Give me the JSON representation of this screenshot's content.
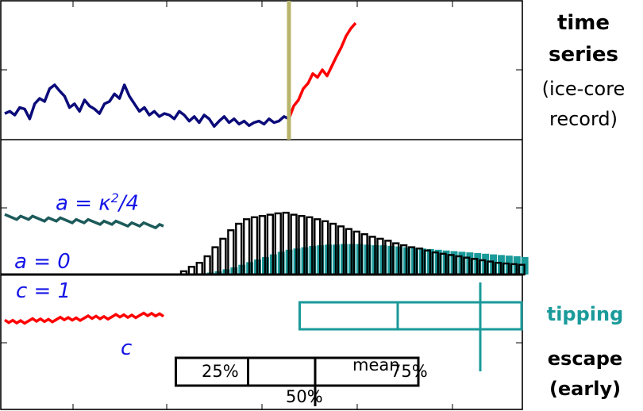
{
  "labels": {
    "time_series": "time",
    "time_series_2": "series",
    "ice_core_1": "(ice-core",
    "ice_core_2": "record)",
    "tipping": "tipping",
    "escape": "escape",
    "early": "(early)",
    "a_kappa_lhs": "a = κ",
    "a_kappa_exp": "2",
    "a_kappa_rhs": "/4",
    "a_zero": "a = 0",
    "c_one": "c = 1",
    "c_var": "c",
    "mean": "mean",
    "p25": "25%",
    "p50": "50%",
    "p75": "75%"
  },
  "colors": {
    "navy": "#0b0b7a",
    "red": "#ff0000",
    "tip_line": "#b8b46a",
    "teal": "#1a9a9a",
    "dark_teal": "#1d5a5a",
    "blue_text": "#1515e6",
    "black": "#000000"
  },
  "chart_data": [
    {
      "type": "line",
      "title": "",
      "xlabel": "",
      "ylabel": "",
      "series": [
        {
          "color": "#0b0b7a",
          "values": [
            0.22,
            0.25,
            0.2,
            0.3,
            0.28,
            0.15,
            0.35,
            0.42,
            0.38,
            0.55,
            0.6,
            0.52,
            0.45,
            0.3,
            0.35,
            0.25,
            0.4,
            0.32,
            0.28,
            0.22,
            0.35,
            0.38,
            0.48,
            0.42,
            0.6,
            0.45,
            0.35,
            0.25,
            0.3,
            0.2,
            0.25,
            0.18,
            0.22,
            0.2,
            0.15,
            0.25,
            0.2,
            0.12,
            0.18,
            0.1,
            0.2,
            0.15,
            0.05,
            0.12,
            0.18,
            0.1,
            0.15,
            0.08,
            0.12,
            0.06,
            0.1,
            0.12,
            0.08,
            0.15,
            0.1,
            0.12,
            0.18,
            0.15
          ]
        },
        {
          "color": "#ff0000",
          "values": [
            0.15,
            0.32,
            0.4,
            0.55,
            0.62,
            0.75,
            0.7,
            0.8,
            0.72,
            0.85,
            0.98,
            1.1,
            1.25,
            1.35,
            1.42
          ]
        }
      ],
      "tipping_marker_color": "#b8b46a"
    },
    {
      "type": "bar",
      "title": "",
      "series": [
        {
          "name": "escape",
          "color": "#000000",
          "values": [
            0.05,
            0.12,
            0.18,
            0.28,
            0.42,
            0.55,
            0.68,
            0.78,
            0.85,
            0.88,
            0.9,
            0.92,
            0.94,
            0.95,
            0.92,
            0.9,
            0.88,
            0.85,
            0.82,
            0.78,
            0.74,
            0.7,
            0.66,
            0.62,
            0.58,
            0.55,
            0.52,
            0.48,
            0.45,
            0.42,
            0.4,
            0.37,
            0.34,
            0.32,
            0.3,
            0.28,
            0.26,
            0.24,
            0.22,
            0.2,
            0.18,
            0.17,
            0.16,
            0.15
          ]
        },
        {
          "name": "tipping",
          "color": "#1a9a9a",
          "values": [
            0.0,
            0.01,
            0.02,
            0.03,
            0.05,
            0.08,
            0.11,
            0.15,
            0.19,
            0.23,
            0.27,
            0.31,
            0.35,
            0.38,
            0.4,
            0.42,
            0.44,
            0.45,
            0.46,
            0.46,
            0.47,
            0.47,
            0.47,
            0.46,
            0.45,
            0.45,
            0.44,
            0.43,
            0.42,
            0.41,
            0.4,
            0.39,
            0.38,
            0.37,
            0.36,
            0.35,
            0.34,
            0.33,
            0.32,
            0.31,
            0.3,
            0.29,
            0.28,
            0.27
          ]
        }
      ],
      "y_levels": [
        {
          "name": "a = κ²/4",
          "color": "#1d5a5a",
          "value": 0.72
        },
        {
          "name": "a = 0",
          "color": "#000000",
          "value": 0.0
        }
      ]
    },
    {
      "type": "box",
      "title": "",
      "boxes": [
        {
          "name": "tipping",
          "color": "#1a9a9a",
          "q1": 0.57,
          "median": 0.76,
          "mean": 0.92,
          "q3": 1.0
        },
        {
          "name": "escape",
          "color": "#000000",
          "q1": 0.33,
          "median": 0.47,
          "mean": 0.6,
          "q3": 0.8
        }
      ],
      "y_levels": [
        {
          "name": "c = 1",
          "color": "#ff0000",
          "value": 1.0
        }
      ]
    }
  ]
}
